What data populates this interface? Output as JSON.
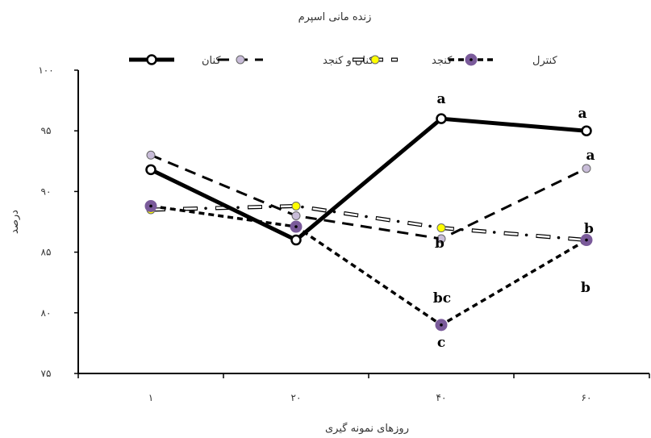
{
  "chart_data": {
    "type": "line",
    "title": "زنده مانی اسپرم",
    "xlabel": "روزهای نمونه گیری",
    "ylabel": "درصد",
    "categories": [
      "۱",
      "۲۰",
      "۴۰",
      "۶۰"
    ],
    "ylim": [
      75,
      100
    ],
    "yticks": [
      75,
      80,
      85,
      90,
      95,
      100
    ],
    "ytick_labels": [
      "۷۵",
      "۸۰",
      "۸۵",
      "۹۰",
      "۹۵",
      "۱۰۰"
    ],
    "legend_position": "top",
    "grid": false,
    "series": [
      {
        "name": "کنان",
        "values": [
          91.8,
          86.0,
          96.0,
          95.0
        ],
        "line_color": "#000000",
        "marker_color": "#ffffff",
        "style": "solid-thick",
        "letters": [
          "",
          "",
          "a",
          "a"
        ]
      },
      {
        "name": "کنان و کنجد",
        "values": [
          93.0,
          88.0,
          86.1,
          91.9
        ],
        "line_color": "#000000",
        "marker_color": "#c8bcd8",
        "style": "dashed",
        "letters": [
          "",
          "",
          "",
          "a"
        ]
      },
      {
        "name": "کنجد",
        "values": [
          88.5,
          88.8,
          87.0,
          86.0
        ],
        "line_color": "#000000",
        "marker_color": "#ffff00",
        "style": "hollow-dash",
        "letters": [
          "",
          "",
          "b",
          "b"
        ]
      },
      {
        "name": "کنترل",
        "values": [
          88.8,
          87.1,
          79.0,
          86.0
        ],
        "line_color": "#000000",
        "marker_color": "#7a5a9a",
        "style": "short-dash",
        "letters": [
          "",
          "",
          "bc",
          "b"
        ]
      }
    ],
    "extra_labels": [
      {
        "text": "c",
        "series_index": 3,
        "point_index": 2
      }
    ]
  }
}
